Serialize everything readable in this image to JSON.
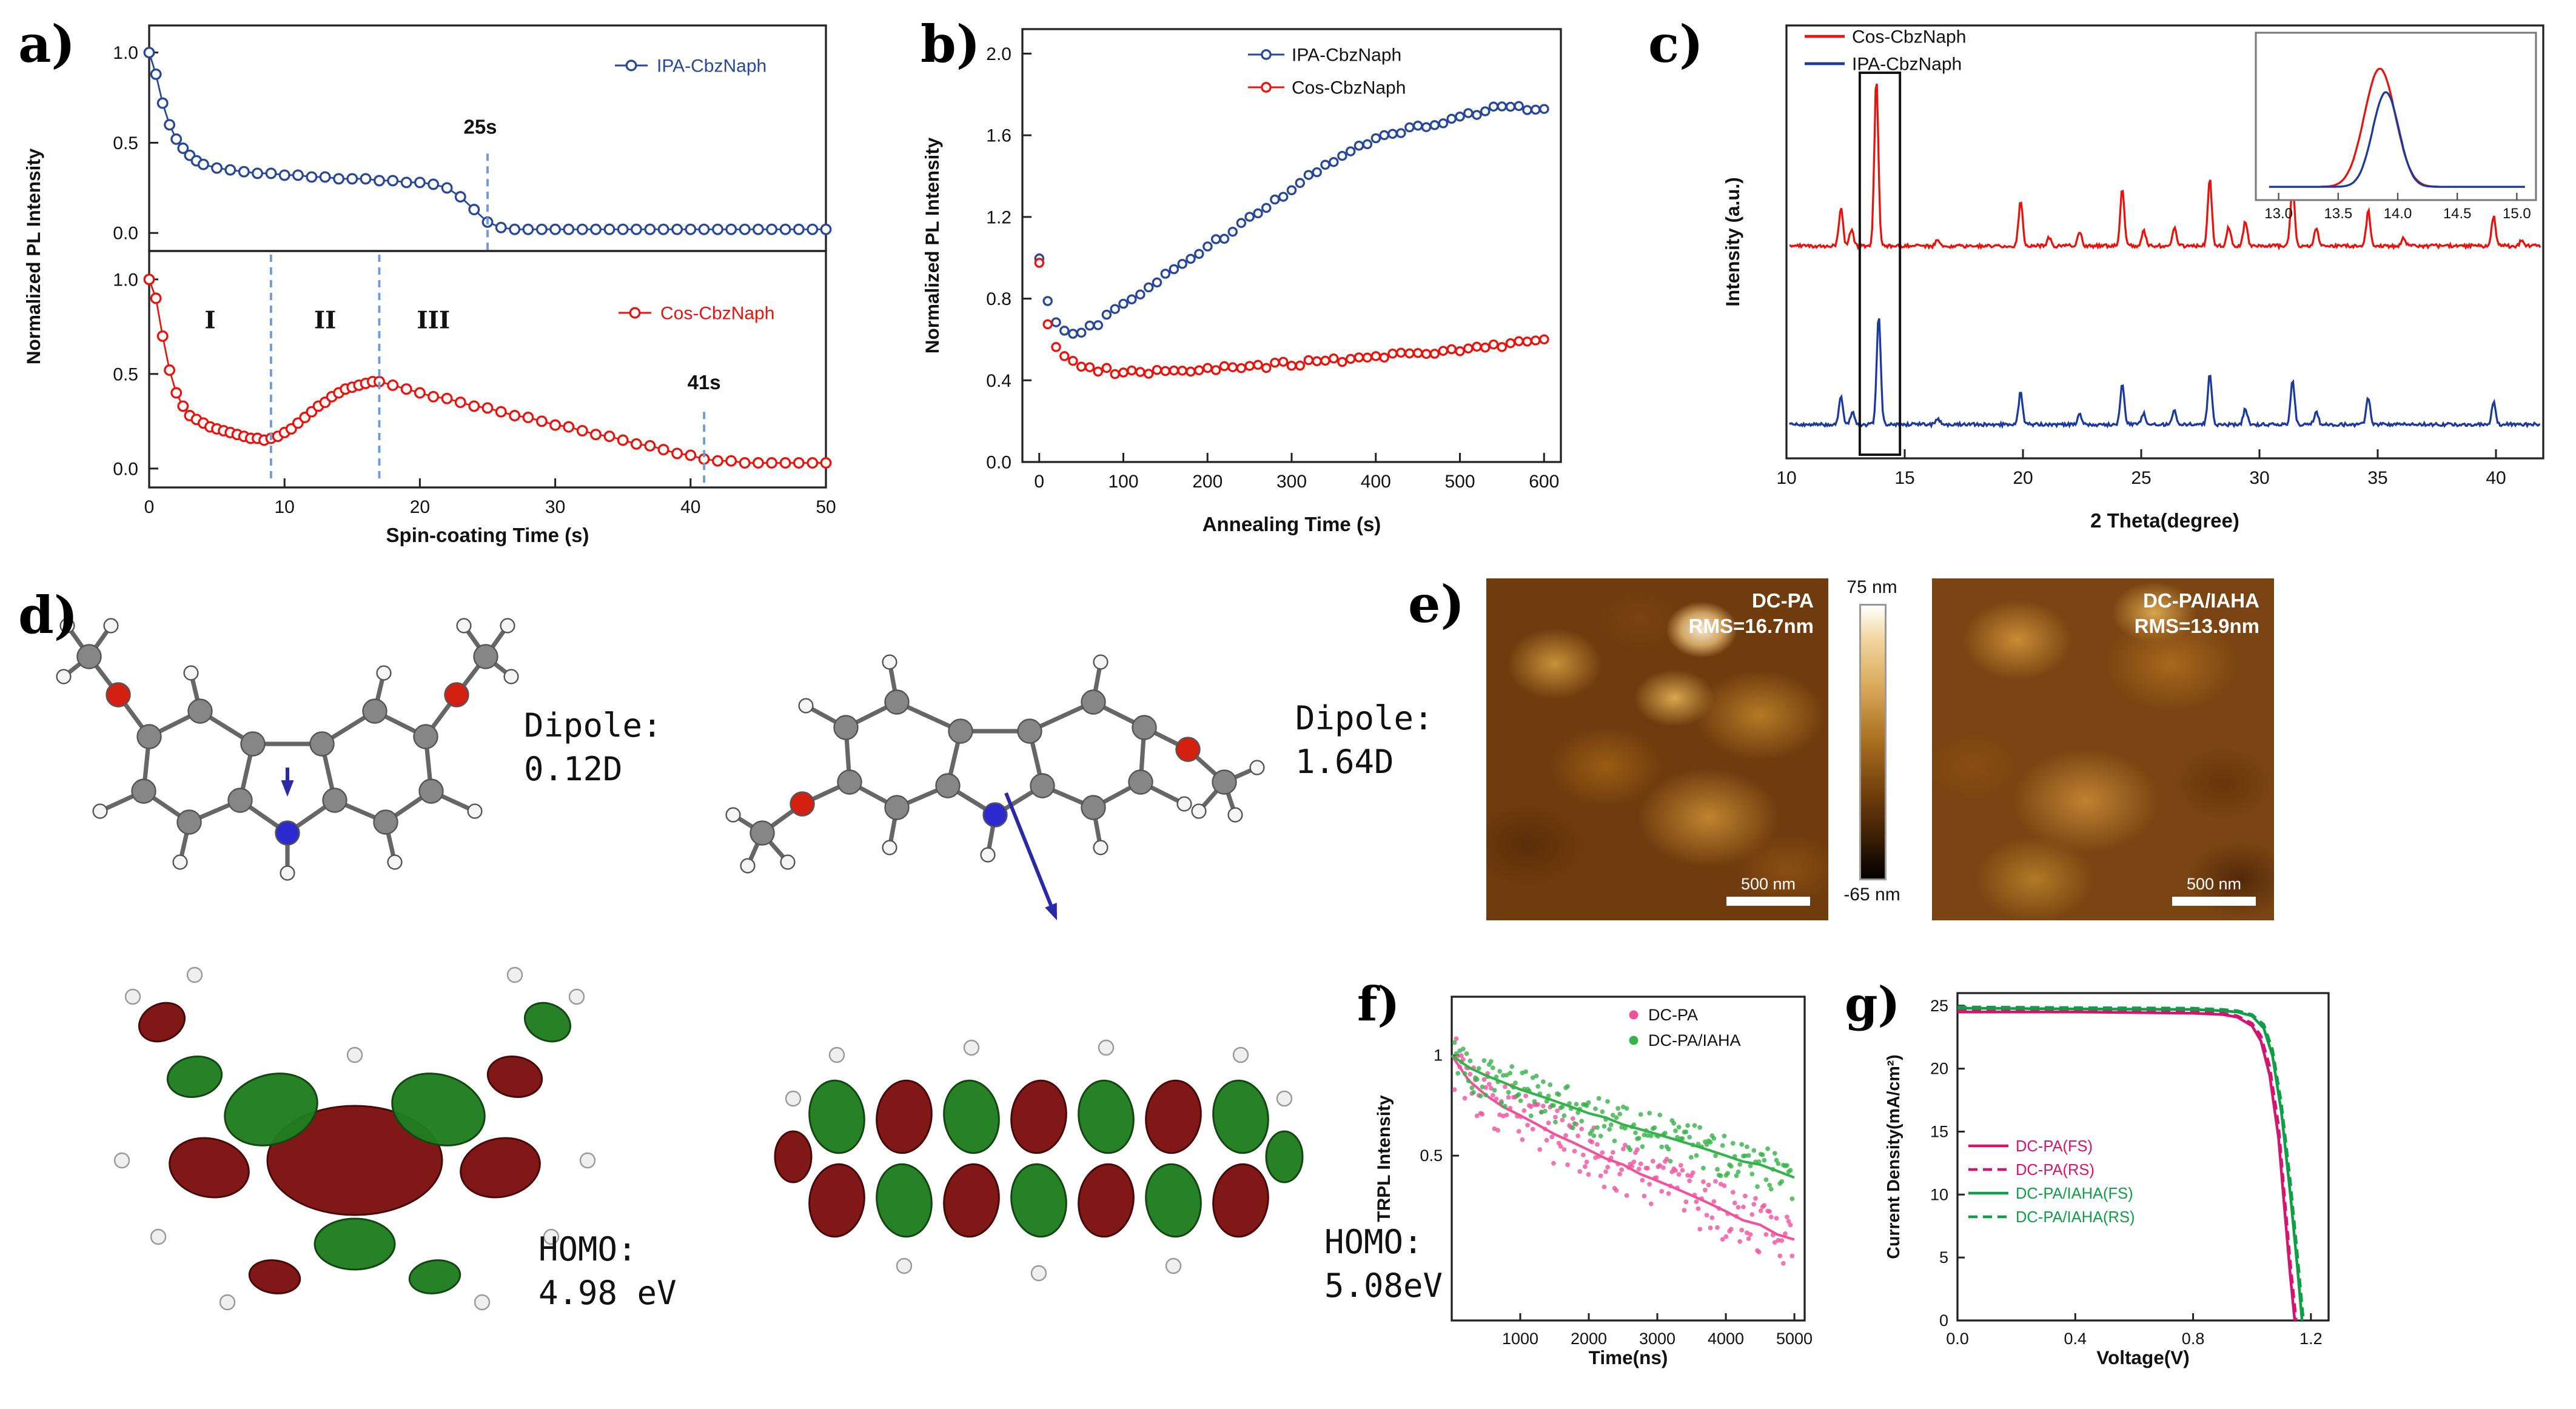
{
  "labels": {
    "a": "a)",
    "b": "b)",
    "c": "c)",
    "d": "d)",
    "e": "e)",
    "f": "f)",
    "g": "g)"
  },
  "panel_d": {
    "left": {
      "line1": "Dipole:",
      "line2": "0.12D"
    },
    "right": {
      "line1": "Dipole:",
      "line2": "1.64D"
    },
    "homo_left": {
      "line1": "HOMO:",
      "line2": "4.98 eV"
    },
    "homo_right": {
      "line1": "HOMO:",
      "line2": "5.08eV"
    }
  },
  "panel_e": {
    "left_title": "DC-PA",
    "left_rms": "RMS=16.7nm",
    "right_title": "DC-PA/IAHA",
    "right_rms": "RMS=13.9nm",
    "colorbar_top": "75 nm",
    "colorbar_bottom": "-65 nm",
    "scalebar": "500 nm"
  },
  "chart_data": [
    {
      "id": "a-top",
      "type": "scatter",
      "xlabel": "Spin-coating Time (s)",
      "ylabel": "Normalized PL Intensity",
      "xlim": [
        0,
        50
      ],
      "ylim": [
        -0.1,
        1.15
      ],
      "xticks": [
        0,
        10,
        20,
        30,
        40,
        50
      ],
      "yticks": [
        0,
        0.5,
        1
      ],
      "legend": "IPA-CbzNaph",
      "annotations": [
        {
          "text": "25s",
          "x": 25,
          "text_y": 0.55,
          "line_from": 0.44,
          "line_to": -0.1
        }
      ],
      "series": [
        {
          "name": "IPA-CbzNaph",
          "color": "#27479b",
          "x": [
            0,
            0.5,
            1,
            1.5,
            2,
            2.5,
            3,
            3.5,
            4,
            5,
            6,
            7,
            8,
            9,
            10,
            11,
            12,
            13,
            14,
            15,
            16,
            17,
            18,
            19,
            20,
            21,
            22,
            23,
            24,
            25,
            26,
            27,
            28,
            29,
            30,
            31,
            32,
            33,
            34,
            35,
            36,
            37,
            38,
            39,
            40,
            41,
            42,
            43,
            44,
            45,
            46,
            47,
            48,
            49,
            50
          ],
          "y": [
            1.0,
            0.88,
            0.72,
            0.6,
            0.52,
            0.47,
            0.43,
            0.4,
            0.38,
            0.36,
            0.35,
            0.34,
            0.33,
            0.33,
            0.32,
            0.32,
            0.31,
            0.31,
            0.3,
            0.3,
            0.3,
            0.29,
            0.29,
            0.28,
            0.28,
            0.27,
            0.25,
            0.2,
            0.13,
            0.06,
            0.03,
            0.02,
            0.02,
            0.02,
            0.02,
            0.02,
            0.02,
            0.02,
            0.02,
            0.02,
            0.02,
            0.02,
            0.02,
            0.02,
            0.02,
            0.02,
            0.02,
            0.02,
            0.02,
            0.02,
            0.02,
            0.02,
            0.02,
            0.02,
            0.02
          ]
        }
      ]
    },
    {
      "id": "a-bottom",
      "type": "scatter",
      "xlabel": "Spin-coating Time (s)",
      "ylabel": "Normalized PL Intensity",
      "xlim": [
        0,
        50
      ],
      "ylim": [
        -0.1,
        1.15
      ],
      "xticks": [
        0,
        10,
        20,
        30,
        40,
        50
      ],
      "yticks": [
        0,
        0.5,
        1
      ],
      "legend": "Cos-CbzNaph",
      "dividers": [
        9,
        17
      ],
      "regions": [
        [
          "I",
          4.5,
          0.78
        ],
        [
          "II",
          13,
          0.78
        ],
        [
          "III",
          21,
          0.78
        ]
      ],
      "annotations": [
        {
          "text": "41s",
          "x": 41,
          "text_y": 0.42,
          "line_from": 0.3,
          "line_to": -0.1
        }
      ],
      "series": [
        {
          "name": "Cos-CbzNaph",
          "color": "#e8130c",
          "x": [
            0,
            0.5,
            1,
            1.5,
            2,
            2.5,
            3,
            3.5,
            4,
            4.5,
            5,
            5.5,
            6,
            6.5,
            7,
            7.5,
            8,
            8.5,
            9,
            9.5,
            10,
            10.5,
            11,
            11.5,
            12,
            12.5,
            13,
            13.5,
            14,
            14.5,
            15,
            15.5,
            16,
            16.5,
            17,
            18,
            19,
            20,
            21,
            22,
            23,
            24,
            25,
            26,
            27,
            28,
            29,
            30,
            31,
            32,
            33,
            34,
            35,
            36,
            37,
            38,
            39,
            40,
            41,
            42,
            43,
            44,
            45,
            46,
            47,
            48,
            49,
            50
          ],
          "y": [
            1.0,
            0.9,
            0.7,
            0.52,
            0.4,
            0.33,
            0.28,
            0.26,
            0.24,
            0.22,
            0.21,
            0.2,
            0.19,
            0.18,
            0.17,
            0.16,
            0.16,
            0.15,
            0.16,
            0.17,
            0.19,
            0.21,
            0.24,
            0.27,
            0.3,
            0.33,
            0.35,
            0.38,
            0.4,
            0.42,
            0.43,
            0.44,
            0.45,
            0.46,
            0.46,
            0.44,
            0.42,
            0.4,
            0.38,
            0.37,
            0.35,
            0.33,
            0.32,
            0.3,
            0.28,
            0.27,
            0.25,
            0.23,
            0.22,
            0.2,
            0.18,
            0.17,
            0.15,
            0.13,
            0.12,
            0.1,
            0.08,
            0.07,
            0.05,
            0.04,
            0.04,
            0.03,
            0.03,
            0.03,
            0.03,
            0.03,
            0.03,
            0.03
          ]
        }
      ]
    },
    {
      "id": "b",
      "type": "scatter",
      "xlabel": "Annealing Time (s)",
      "ylabel": "Normalized PL Intensity",
      "xlim": [
        -20,
        620
      ],
      "ylim": [
        0,
        2.12
      ],
      "xticks": [
        0,
        100,
        200,
        300,
        400,
        500,
        600
      ],
      "yticks": [
        0,
        0.4,
        0.8,
        1.2,
        1.6,
        2
      ],
      "x": [
        0,
        10,
        20,
        30,
        40,
        50,
        60,
        70,
        80,
        90,
        100,
        110,
        120,
        130,
        140,
        150,
        160,
        170,
        180,
        190,
        200,
        210,
        220,
        230,
        240,
        250,
        260,
        270,
        280,
        290,
        300,
        310,
        320,
        330,
        340,
        350,
        360,
        370,
        380,
        390,
        400,
        410,
        420,
        430,
        440,
        450,
        460,
        470,
        480,
        490,
        500,
        510,
        520,
        530,
        540,
        550,
        560,
        570,
        580,
        590,
        600
      ],
      "series": [
        {
          "name": "IPA-CbzNaph",
          "color": "#27479b",
          "y": [
            1.0,
            0.8,
            0.68,
            0.65,
            0.63,
            0.64,
            0.66,
            0.68,
            0.71,
            0.74,
            0.77,
            0.8,
            0.83,
            0.85,
            0.88,
            0.91,
            0.94,
            0.97,
            1.0,
            1.02,
            1.05,
            1.08,
            1.1,
            1.13,
            1.16,
            1.19,
            1.22,
            1.25,
            1.28,
            1.3,
            1.33,
            1.36,
            1.4,
            1.43,
            1.46,
            1.48,
            1.5,
            1.52,
            1.54,
            1.56,
            1.58,
            1.6,
            1.61,
            1.62,
            1.63,
            1.64,
            1.65,
            1.66,
            1.67,
            1.68,
            1.69,
            1.7,
            1.71,
            1.72,
            1.73,
            1.74,
            1.75,
            1.74,
            1.73,
            1.72,
            1.72
          ]
        },
        {
          "name": "Cos-CbzNaph",
          "color": "#e8130c",
          "y": [
            0.97,
            0.68,
            0.57,
            0.52,
            0.49,
            0.47,
            0.46,
            0.45,
            0.45,
            0.44,
            0.44,
            0.44,
            0.44,
            0.44,
            0.45,
            0.45,
            0.45,
            0.45,
            0.45,
            0.46,
            0.46,
            0.46,
            0.46,
            0.46,
            0.47,
            0.47,
            0.47,
            0.47,
            0.48,
            0.48,
            0.48,
            0.48,
            0.49,
            0.49,
            0.49,
            0.5,
            0.5,
            0.5,
            0.51,
            0.51,
            0.52,
            0.52,
            0.52,
            0.53,
            0.53,
            0.53,
            0.54,
            0.54,
            0.54,
            0.55,
            0.55,
            0.55,
            0.56,
            0.56,
            0.57,
            0.57,
            0.58,
            0.58,
            0.58,
            0.59,
            0.59
          ]
        }
      ]
    },
    {
      "id": "c",
      "type": "line",
      "xlabel": "2 Theta(degree)",
      "ylabel": "Intensity (a.u.)",
      "xlim": [
        10,
        42
      ],
      "xticks": [
        10,
        15,
        20,
        25,
        30,
        35,
        40
      ],
      "series": [
        {
          "name": "Cos-CbzNaph",
          "color": "#e8130c",
          "baseline": 1.42,
          "peaks": [
            [
              12.3,
              0.28
            ],
            [
              12.75,
              0.12
            ],
            [
              13.8,
              1.22
            ],
            [
              16.4,
              0.05
            ],
            [
              19.9,
              0.34
            ],
            [
              21.1,
              0.06
            ],
            [
              22.4,
              0.1
            ],
            [
              24.2,
              0.42
            ],
            [
              25.1,
              0.12
            ],
            [
              26.4,
              0.14
            ],
            [
              27.9,
              0.5
            ],
            [
              28.7,
              0.14
            ],
            [
              29.4,
              0.18
            ],
            [
              31.4,
              0.46
            ],
            [
              32.4,
              0.13
            ],
            [
              34.6,
              0.26
            ],
            [
              36.1,
              0.06
            ],
            [
              39.9,
              0.22
            ],
            [
              41.1,
              0.05
            ]
          ]
        },
        {
          "name": "IPA-CbzNaph",
          "color": "#1b3a9e",
          "baseline": 0.1,
          "peaks": [
            [
              12.3,
              0.2
            ],
            [
              12.8,
              0.1
            ],
            [
              13.9,
              0.8
            ],
            [
              16.4,
              0.04
            ],
            [
              19.9,
              0.24
            ],
            [
              22.4,
              0.07
            ],
            [
              24.2,
              0.3
            ],
            [
              25.1,
              0.08
            ],
            [
              26.4,
              0.1
            ],
            [
              27.9,
              0.38
            ],
            [
              29.4,
              0.12
            ],
            [
              31.4,
              0.32
            ],
            [
              32.4,
              0.1
            ],
            [
              34.6,
              0.2
            ],
            [
              39.9,
              0.16
            ]
          ]
        }
      ],
      "highlight_box": [
        13.1,
        14.8
      ],
      "inset": {
        "xlim": [
          12.9,
          15.1
        ],
        "xticks": [
          13,
          13.5,
          14,
          14.5,
          15
        ],
        "series": [
          {
            "name": "Cos-CbzNaph",
            "color": "#e8130c",
            "center": 13.85,
            "height": 1,
            "sigma": 0.13
          },
          {
            "name": "IPA-CbzNaph",
            "color": "#1b3a9e",
            "center": 13.9,
            "height": 0.8,
            "sigma": 0.11
          }
        ]
      }
    },
    {
      "id": "f",
      "type": "scatter",
      "xlabel": "Time(ns)",
      "ylabel": "TRPL Intensity",
      "xlim": [
        0,
        5150
      ],
      "ylim_log": [
        0.16,
        1.5
      ],
      "xticks": [
        1000,
        2000,
        3000,
        4000,
        5000
      ],
      "yticks": [
        0.5,
        1
      ],
      "fit_x": [
        0,
        250,
        500,
        750,
        1000,
        1250,
        1500,
        1750,
        2000,
        2250,
        2500,
        2750,
        3000,
        3250,
        3500,
        3750,
        4000,
        4250,
        4500,
        4750,
        5000
      ],
      "series": [
        {
          "name": "DC-PA",
          "color": "#f0539b",
          "noise": 0.2,
          "fit_y": [
            1.0,
            0.84,
            0.76,
            0.7,
            0.66,
            0.62,
            0.58,
            0.55,
            0.52,
            0.49,
            0.47,
            0.44,
            0.42,
            0.4,
            0.38,
            0.36,
            0.34,
            0.32,
            0.31,
            0.29,
            0.28
          ]
        },
        {
          "name": "DC-PA/IAHA",
          "color": "#36b24a",
          "noise": 0.15,
          "fit_y": [
            1.0,
            0.92,
            0.87,
            0.83,
            0.79,
            0.76,
            0.73,
            0.7,
            0.67,
            0.65,
            0.62,
            0.6,
            0.58,
            0.56,
            0.54,
            0.52,
            0.5,
            0.48,
            0.47,
            0.45,
            0.43
          ]
        }
      ]
    },
    {
      "id": "g",
      "type": "line",
      "xlabel": "Voltage(V)",
      "ylabel": "Current Density(mA/cm²)",
      "xlim": [
        0,
        1.26
      ],
      "ylim": [
        0,
        26
      ],
      "xticks": [
        0,
        0.4,
        0.8,
        1.2
      ],
      "yticks": [
        0,
        5,
        10,
        15,
        20,
        25
      ],
      "legend_position": "center-left",
      "series": [
        {
          "name": "DC-PA(FS)",
          "color": "#d4146e",
          "dash": false,
          "points": [
            [
              0,
              24.5
            ],
            [
              0.2,
              24.5
            ],
            [
              0.4,
              24.5
            ],
            [
              0.6,
              24.45
            ],
            [
              0.8,
              24.4
            ],
            [
              0.9,
              24.3
            ],
            [
              0.95,
              24.1
            ],
            [
              1,
              23.4
            ],
            [
              1.03,
              22.2
            ],
            [
              1.06,
              19.5
            ],
            [
              1.09,
              14.5
            ],
            [
              1.11,
              9
            ],
            [
              1.13,
              3.5
            ],
            [
              1.145,
              0
            ]
          ]
        },
        {
          "name": "DC-PA(RS)",
          "color": "#d4146e",
          "dash": true,
          "points": [
            [
              0,
              24.6
            ],
            [
              0.4,
              24.55
            ],
            [
              0.8,
              24.5
            ],
            [
              0.9,
              24.4
            ],
            [
              0.95,
              24.2
            ],
            [
              1,
              23.6
            ],
            [
              1.03,
              22.6
            ],
            [
              1.06,
              20.2
            ],
            [
              1.09,
              15.5
            ],
            [
              1.11,
              10
            ],
            [
              1.13,
              4.5
            ],
            [
              1.15,
              0
            ]
          ]
        },
        {
          "name": "DC-PA/IAHA(FS)",
          "color": "#0f9e45",
          "dash": false,
          "points": [
            [
              0,
              24.8
            ],
            [
              0.4,
              24.75
            ],
            [
              0.8,
              24.7
            ],
            [
              0.9,
              24.6
            ],
            [
              0.95,
              24.5
            ],
            [
              1,
              24.2
            ],
            [
              1.04,
              23.2
            ],
            [
              1.07,
              21
            ],
            [
              1.1,
              16.5
            ],
            [
              1.13,
              10
            ],
            [
              1.155,
              4
            ],
            [
              1.17,
              0
            ]
          ]
        },
        {
          "name": "DC-PA/IAHA(RS)",
          "color": "#0f9e45",
          "dash": true,
          "points": [
            [
              0,
              24.9
            ],
            [
              0.4,
              24.85
            ],
            [
              0.8,
              24.8
            ],
            [
              0.9,
              24.7
            ],
            [
              0.95,
              24.6
            ],
            [
              1,
              24.3
            ],
            [
              1.04,
              23.5
            ],
            [
              1.07,
              21.5
            ],
            [
              1.1,
              17.2
            ],
            [
              1.13,
              11
            ],
            [
              1.155,
              5
            ],
            [
              1.175,
              0
            ]
          ]
        }
      ]
    }
  ]
}
